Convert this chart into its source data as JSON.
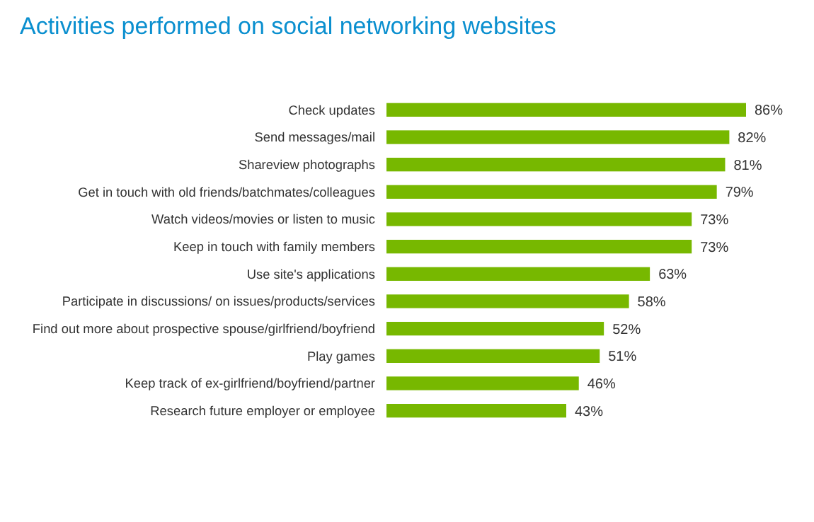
{
  "chart_data": {
    "type": "bar",
    "orientation": "horizontal",
    "title": "Activities performed on social networking websites",
    "categories": [
      "Check updates",
      "Send messages/mail",
      "Shareview photographs",
      "Get in touch with old friends/batchmates/colleagues",
      "Watch videos/movies or listen to music",
      "Keep in touch with family members",
      "Use site's applications",
      "Participate in discussions/ on issues/products/services",
      "Find out more about prospective spouse/girlfriend/boyfriend",
      "Play games",
      "Keep track of ex-girlfriend/boyfriend/partner",
      "Research future employer or employee"
    ],
    "values": [
      86,
      82,
      81,
      79,
      73,
      73,
      63,
      58,
      52,
      51,
      46,
      43
    ],
    "value_labels": [
      "86%",
      "82%",
      "81%",
      "79%",
      "73%",
      "73%",
      "63%",
      "58%",
      "52%",
      "51%",
      "46%",
      "43%"
    ],
    "color": "#77b800"
  }
}
